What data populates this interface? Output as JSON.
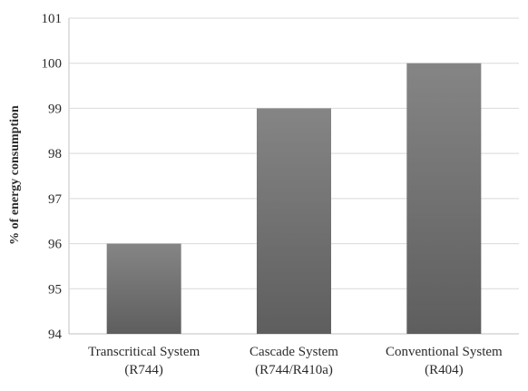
{
  "chart_data": {
    "type": "bar",
    "title": "",
    "xlabel": "",
    "ylabel": "% of energy consumption",
    "ylim": [
      94,
      101
    ],
    "yticks": [
      94,
      95,
      96,
      97,
      98,
      99,
      100,
      101
    ],
    "grid": true,
    "legend": "none",
    "categories": [
      {
        "line1": "Transcritical System",
        "line2": "(R744)"
      },
      {
        "line1": "Cascade System",
        "line2": "(R744/R410a)"
      },
      {
        "line1": "Conventional System",
        "line2": "(R404)"
      }
    ],
    "values": [
      96,
      99,
      100
    ],
    "colors": {
      "bar_top": "#858585",
      "bar_bottom": "#5e5e5e",
      "grid": "#d9d9d9",
      "axis": "#c0c0c0"
    }
  }
}
